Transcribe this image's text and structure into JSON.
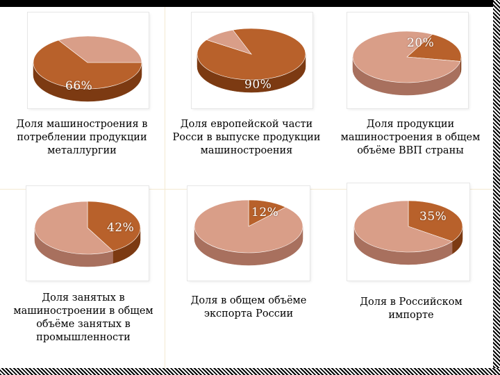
{
  "colors": {
    "dark_top": "#B8612B",
    "dark_side": "#7C3A12",
    "light_top": "#D99E88",
    "light_side": "#A8705E"
  },
  "chart_data": [
    {
      "type": "pie",
      "title": "",
      "slices": [
        {
          "label": "66%",
          "value": 66,
          "color": "dark"
        },
        {
          "label": "",
          "value": 34,
          "color": "light"
        }
      ]
    },
    {
      "type": "pie",
      "title": "",
      "slices": [
        {
          "label": "90%",
          "value": 90,
          "color": "dark"
        },
        {
          "label": "",
          "value": 10,
          "color": "light"
        }
      ]
    },
    {
      "type": "pie",
      "title": "",
      "slices": [
        {
          "label": "20%",
          "value": 20,
          "color": "dark"
        },
        {
          "label": "",
          "value": 80,
          "color": "light"
        }
      ]
    },
    {
      "type": "pie",
      "title": "",
      "slices": [
        {
          "label": "42%",
          "value": 42,
          "color": "dark"
        },
        {
          "label": "",
          "value": 58,
          "color": "light"
        }
      ]
    },
    {
      "type": "pie",
      "title": "",
      "slices": [
        {
          "label": "12%",
          "value": 12,
          "color": "dark"
        },
        {
          "label": "",
          "value": 88,
          "color": "light"
        }
      ]
    },
    {
      "type": "pie",
      "title": "",
      "slices": [
        {
          "label": "35%",
          "value": 35,
          "color": "dark"
        },
        {
          "label": "",
          "value": 65,
          "color": "light"
        }
      ]
    }
  ],
  "captions": [
    "Доля машиностроения в потреблении продукции металлургии",
    "Доля европейской части Росси в выпуске продукции машиностроения",
    "Доля продукции машиностроения в общем объёме ВВП страны",
    "Доля занятых в машиностроении в общем объёме занятых в промышленности",
    "Доля в общем объёме экспорта России",
    "Доля в Российском импорте"
  ]
}
